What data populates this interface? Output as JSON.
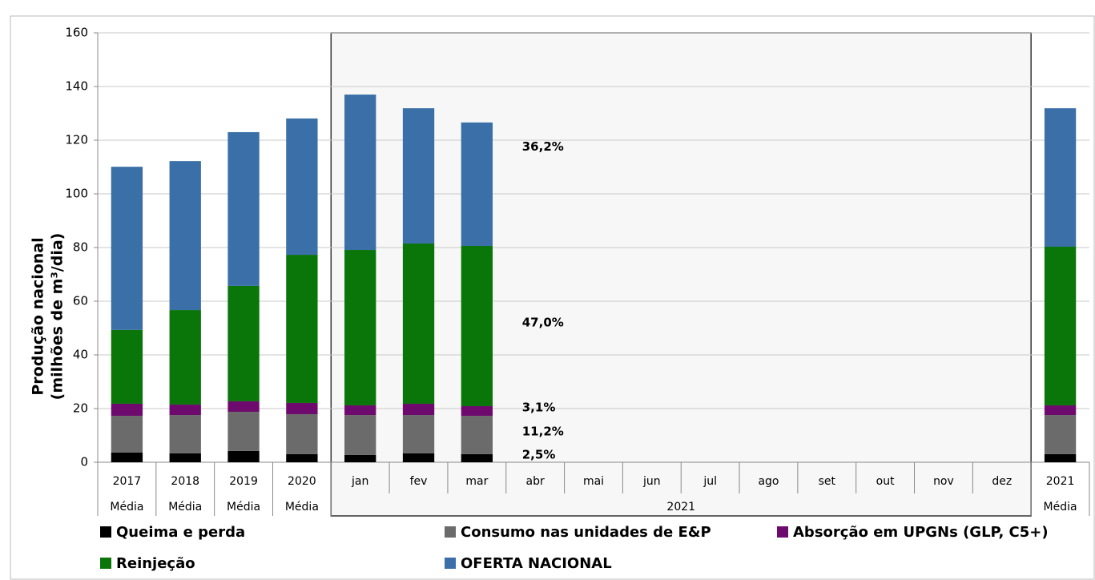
{
  "chart_data": {
    "type": "stacked_bar",
    "y_label": [
      "Produção nacional",
      "(milhões de m³/dia)"
    ],
    "categories": [
      "2017",
      "2018",
      "2019",
      "2020",
      "jan",
      "fev",
      "mar",
      "abr",
      "mai",
      "jun",
      "jul",
      "ago",
      "set",
      "out",
      "nov",
      "dez",
      "2021"
    ],
    "x_groups": [
      {
        "label": "Média",
        "count": 1
      },
      {
        "label": "Média",
        "count": 1
      },
      {
        "label": "Média",
        "count": 1
      },
      {
        "label": "Média",
        "count": 1
      },
      {
        "label": "2021",
        "count": 12
      },
      {
        "label": "Média",
        "count": 1
      }
    ],
    "series": [
      {
        "name": "Queima e perda",
        "color": "#000000",
        "values": [
          3.6,
          3.3,
          4.2,
          3.0,
          2.7,
          3.3,
          3.0,
          null,
          null,
          null,
          null,
          null,
          null,
          null,
          null,
          null,
          3.0
        ]
      },
      {
        "name": "Consumo nas unidades de E&P",
        "color": "#6b6b6b",
        "values": [
          13.7,
          14.3,
          14.6,
          14.9,
          14.9,
          14.3,
          14.3,
          null,
          null,
          null,
          null,
          null,
          null,
          null,
          null,
          null,
          14.6
        ]
      },
      {
        "name": "Absorção em UPGNs (GLP, C5+)",
        "color": "#6e0a6e",
        "values": [
          4.5,
          3.9,
          3.9,
          4.2,
          3.6,
          4.2,
          3.6,
          null,
          null,
          null,
          null,
          null,
          null,
          null,
          null,
          null,
          3.6
        ]
      },
      {
        "name": "Reinjeção",
        "color": "#0a760a",
        "values": [
          27.5,
          35.2,
          43.0,
          55.2,
          57.9,
          59.7,
          59.7,
          null,
          null,
          null,
          null,
          null,
          null,
          null,
          null,
          null,
          59.1
        ]
      },
      {
        "name": "OFERTA NACIONAL",
        "color": "#3a6fa8",
        "values": [
          60.8,
          55.5,
          57.3,
          50.8,
          57.9,
          50.4,
          46.0,
          null,
          null,
          null,
          null,
          null,
          null,
          null,
          null,
          null,
          51.6
        ]
      }
    ],
    "annotations": [
      {
        "text": "36,2%",
        "series": 4
      },
      {
        "text": "47,0%",
        "series": 3
      },
      {
        "text": "3,1%",
        "series": 2
      },
      {
        "text": "11,2%",
        "series": 1
      },
      {
        "text": "2,5%",
        "series": 0
      }
    ],
    "ylim": [
      0,
      160
    ],
    "yticks": [
      0,
      20,
      40,
      60,
      80,
      100,
      120,
      140,
      160
    ],
    "grid": true
  }
}
